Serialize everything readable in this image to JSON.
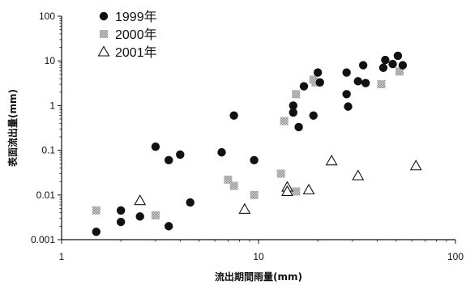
{
  "chart_data": {
    "type": "scatter",
    "title": "",
    "xlabel": "流出期間雨量(mm)",
    "ylabel": "表面流出量(mm)",
    "x_scale": "log",
    "y_scale": "log",
    "xlim": [
      1,
      100
    ],
    "ylim": [
      0.001,
      100
    ],
    "x_ticks": [
      "1",
      "10",
      "100"
    ],
    "y_ticks": [
      "0.001",
      "0.01",
      "0.1",
      "1",
      "10",
      "100"
    ],
    "grid": false,
    "legend_position": "top-left",
    "series": [
      {
        "name": "1999年",
        "marker": "filled-circle",
        "color": "#111111",
        "points": [
          [
            1.5,
            0.0015
          ],
          [
            2.0,
            0.0025
          ],
          [
            2.0,
            0.0045
          ],
          [
            2.5,
            0.0033
          ],
          [
            3.0,
            0.12
          ],
          [
            3.5,
            0.06
          ],
          [
            3.5,
            0.002
          ],
          [
            4.0,
            0.08
          ],
          [
            4.5,
            0.0068
          ],
          [
            6.5,
            0.09
          ],
          [
            7.5,
            0.6
          ],
          [
            9.5,
            0.06
          ],
          [
            15.0,
            1.0
          ],
          [
            15.0,
            0.7
          ],
          [
            16.0,
            0.33
          ],
          [
            17.0,
            2.7
          ],
          [
            19.0,
            0.6
          ],
          [
            20.0,
            5.5
          ],
          [
            20.5,
            3.3
          ],
          [
            28.0,
            5.5
          ],
          [
            28.0,
            1.8
          ],
          [
            28.5,
            0.95
          ],
          [
            32.0,
            3.5
          ],
          [
            34.0,
            8.0
          ],
          [
            35.0,
            3.2
          ],
          [
            43.0,
            7.0
          ],
          [
            44.0,
            10.5
          ],
          [
            48.0,
            8.5
          ],
          [
            51.0,
            13.0
          ],
          [
            54.0,
            8.0
          ]
        ]
      },
      {
        "name": "2000年",
        "marker": "hatched-square",
        "color": "#9a9a9a",
        "points": [
          [
            1.5,
            0.0045
          ],
          [
            3.0,
            0.0035
          ],
          [
            7.0,
            0.022
          ],
          [
            7.5,
            0.016
          ],
          [
            9.5,
            0.01
          ],
          [
            13.0,
            0.03
          ],
          [
            13.5,
            0.45
          ],
          [
            15.5,
            1.8
          ],
          [
            15.5,
            0.012
          ],
          [
            19.0,
            3.8
          ],
          [
            19.5,
            3.3
          ],
          [
            42.0,
            3.0
          ],
          [
            52.0,
            5.8
          ]
        ]
      },
      {
        "name": "2001年",
        "marker": "open-triangle",
        "color": "#111111",
        "points": [
          [
            2.5,
            0.0075
          ],
          [
            8.5,
            0.0048
          ],
          [
            14.0,
            0.015
          ],
          [
            14.0,
            0.012
          ],
          [
            18.0,
            0.013
          ],
          [
            23.5,
            0.058
          ],
          [
            32.0,
            0.027
          ],
          [
            63.0,
            0.045
          ]
        ]
      }
    ]
  }
}
